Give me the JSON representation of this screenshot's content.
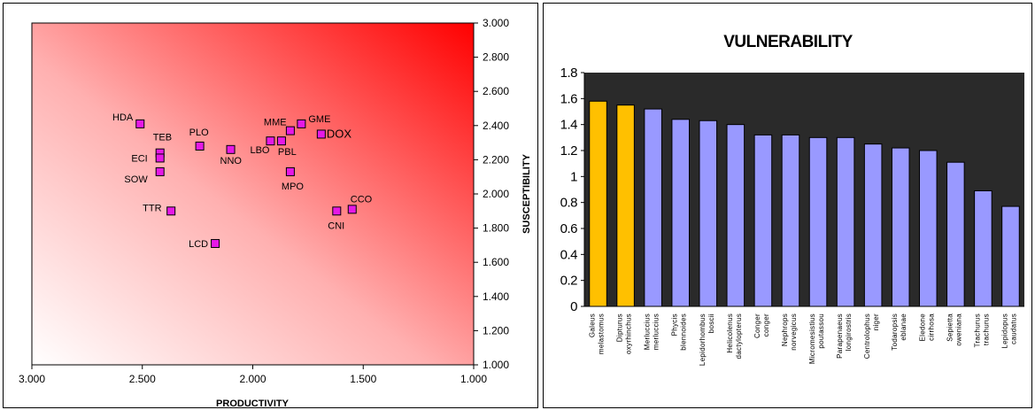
{
  "chart_data": [
    {
      "type": "scatter",
      "xlabel": "PRODUCTIVITY",
      "ylabel": "SUSCEPTIBILITY",
      "xlim": [
        3.0,
        1.0
      ],
      "ylim": [
        1.0,
        3.0
      ],
      "x_reversed": true,
      "x_ticks": [
        "3.000",
        "2.500",
        "2.000",
        "1.500",
        "1.000"
      ],
      "y_ticks": [
        "1.000",
        "1.200",
        "1.400",
        "1.600",
        "1.800",
        "2.000",
        "2.200",
        "2.400",
        "2.600",
        "2.800",
        "3.000"
      ],
      "background": "gradient white (lower-left) to red (upper-right)",
      "marker_color": "#e619e6",
      "points": [
        {
          "label": "HDA",
          "x": 2.51,
          "y": 2.41
        },
        {
          "label": "PLO",
          "x": 2.24,
          "y": 2.28
        },
        {
          "label": "TEB",
          "x": 2.42,
          "y": 2.24
        },
        {
          "label": "ECI",
          "x": 2.42,
          "y": 2.21
        },
        {
          "label": "SOW",
          "x": 2.42,
          "y": 2.13
        },
        {
          "label": "NNO",
          "x": 2.1,
          "y": 2.26
        },
        {
          "label": "LBO",
          "x": 1.92,
          "y": 2.31
        },
        {
          "label": "PBL",
          "x": 1.87,
          "y": 2.31
        },
        {
          "label": "MME",
          "x": 1.83,
          "y": 2.37
        },
        {
          "label": "GME",
          "x": 1.78,
          "y": 2.41
        },
        {
          "label": "DOX",
          "x": 1.69,
          "y": 2.35
        },
        {
          "label": "MPO",
          "x": 1.83,
          "y": 2.13
        },
        {
          "label": "TTR",
          "x": 2.37,
          "y": 1.9
        },
        {
          "label": "CNI",
          "x": 1.62,
          "y": 1.9
        },
        {
          "label": "CCO",
          "x": 1.55,
          "y": 1.91
        },
        {
          "label": "LCD",
          "x": 2.17,
          "y": 1.71
        }
      ]
    },
    {
      "type": "bar",
      "title": "VULNERABILITY",
      "ylim": [
        0,
        1.8
      ],
      "y_ticks": [
        "0",
        "0.2",
        "0.4",
        "0.6",
        "0.8",
        "1",
        "1.2",
        "1.4",
        "1.6",
        "1.8"
      ],
      "plot_background": "#2a2a2a",
      "highlight_color": "#ffc000",
      "bar_color": "#9999ff",
      "categories": [
        "Galeus melastomus",
        "Dipturus oxyrhinchus",
        "Merluccius merluccius",
        "Phycis blennoides",
        "Lepidorhombus boscii",
        "Helicolenus dactylopterus",
        "Conger conger",
        "Nephrops norvegicus",
        "Micromesistius poutassou",
        "Parapenaeus longirostris",
        "Centrolophus niger",
        "Todaropsis eblanae",
        "Eledone cirrhosa",
        "Sepietta oweniana",
        "Trachurus trachurus",
        "Lepidopus caudatus"
      ],
      "values": [
        1.58,
        1.55,
        1.52,
        1.44,
        1.43,
        1.4,
        1.32,
        1.32,
        1.3,
        1.3,
        1.25,
        1.22,
        1.2,
        1.11,
        0.89,
        0.77
      ],
      "highlighted": [
        0,
        1
      ]
    }
  ]
}
